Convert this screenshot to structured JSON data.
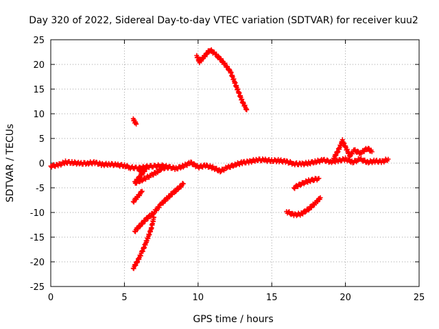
{
  "chart_data": {
    "type": "scatter",
    "title": "Day 320 of 2022, Sidereal Day-to-day VTEC variation (SDTVAR) for receiver kuu2",
    "xlabel": "GPS time / hours",
    "ylabel": "SDTVAR / TECUs",
    "xlim": [
      0,
      25
    ],
    "ylim": [
      -25,
      25
    ],
    "xticks": [
      0,
      5,
      10,
      15,
      20,
      25
    ],
    "yticks": [
      -25,
      -20,
      -15,
      -10,
      -5,
      0,
      5,
      10,
      15,
      20,
      25
    ],
    "grid": true,
    "legend": "none",
    "marker": "plus",
    "color": "#ff0000",
    "series": [
      {
        "name": "near-zero band",
        "points": [
          [
            0,
            -0.6
          ],
          [
            0.5,
            -0.4
          ],
          [
            1,
            0.2
          ],
          [
            1.5,
            0.1
          ],
          [
            2,
            -0.1
          ],
          [
            2.5,
            0.0
          ],
          [
            3,
            0.1
          ],
          [
            3.5,
            -0.3
          ],
          [
            4,
            -0.2
          ],
          [
            4.5,
            -0.4
          ],
          [
            5,
            -0.5
          ],
          [
            5.4,
            -0.9
          ],
          [
            6,
            -1.0
          ],
          [
            6.6,
            -0.7
          ],
          [
            7.5,
            -0.5
          ],
          [
            8.5,
            -1.1
          ],
          [
            9,
            -0.6
          ],
          [
            9.5,
            0.1
          ],
          [
            10,
            -0.8
          ],
          [
            10.5,
            -0.5
          ],
          [
            11,
            -0.9
          ],
          [
            11.5,
            -1.6
          ],
          [
            12,
            -0.9
          ],
          [
            12.5,
            -0.3
          ],
          [
            13,
            0.1
          ],
          [
            13.5,
            0.3
          ],
          [
            14,
            0.7
          ],
          [
            14.5,
            0.6
          ],
          [
            15,
            0.5
          ],
          [
            15.5,
            0.5
          ],
          [
            16,
            0.3
          ],
          [
            16.5,
            -0.1
          ],
          [
            17,
            -0.2
          ],
          [
            17.5,
            0.0
          ],
          [
            18,
            0.3
          ],
          [
            18.5,
            0.6
          ],
          [
            19,
            0.3
          ],
          [
            19.5,
            0.5
          ],
          [
            20,
            0.8
          ],
          [
            20.5,
            0.2
          ],
          [
            21,
            0.8
          ],
          [
            21.5,
            0.2
          ],
          [
            22,
            0.4
          ],
          [
            22.5,
            0.3
          ],
          [
            22.9,
            0.8
          ]
        ]
      },
      {
        "name": "high arc",
        "points": [
          [
            9.9,
            21.8
          ],
          [
            10.1,
            20.5
          ],
          [
            10.4,
            21.5
          ],
          [
            10.8,
            23.0
          ],
          [
            11.2,
            22.0
          ],
          [
            11.7,
            20.5
          ],
          [
            12.2,
            18.5
          ],
          [
            12.6,
            15.5
          ],
          [
            13.0,
            12.5
          ],
          [
            13.3,
            10.8
          ]
        ]
      },
      {
        "name": "isolated cluster",
        "points": [
          [
            5.6,
            9.0
          ],
          [
            5.7,
            8.3
          ],
          [
            5.8,
            7.9
          ]
        ]
      },
      {
        "name": "rise after 20 h",
        "points": [
          [
            19.2,
            1.0
          ],
          [
            19.5,
            2.5
          ],
          [
            19.8,
            4.5
          ],
          [
            20.3,
            1.5
          ],
          [
            20.6,
            2.6
          ],
          [
            21,
            2.0
          ],
          [
            21.5,
            3.0
          ],
          [
            21.8,
            2.3
          ]
        ]
      },
      {
        "name": "shallow rise",
        "points": [
          [
            6.0,
            -1.5
          ],
          [
            6.5,
            -1.0
          ],
          [
            5.7,
            -4.0
          ],
          [
            6.2,
            -3.4
          ],
          [
            6.8,
            -2.5
          ],
          [
            7.2,
            -1.8
          ],
          [
            7.5,
            -1.1
          ],
          [
            8,
            -0.8
          ]
        ]
      },
      {
        "name": "steep rise",
        "points": [
          [
            5.7,
            -13.8
          ],
          [
            6.1,
            -12.5
          ],
          [
            6.5,
            -11.3
          ],
          [
            7,
            -10.0
          ],
          [
            7.5,
            -8.3
          ],
          [
            8,
            -6.8
          ],
          [
            8.5,
            -5.5
          ],
          [
            9,
            -4.2
          ]
        ]
      },
      {
        "name": "short segment",
        "points": [
          [
            5.6,
            -7.8
          ],
          [
            5.9,
            -6.8
          ],
          [
            6.2,
            -5.7
          ]
        ]
      },
      {
        "name": "deepest segment",
        "points": [
          [
            5.6,
            -21.3
          ],
          [
            5.9,
            -19.8
          ],
          [
            6.2,
            -18.0
          ],
          [
            6.5,
            -15.8
          ],
          [
            6.8,
            -13.5
          ],
          [
            7.0,
            -11.0
          ]
        ]
      },
      {
        "name": "dip near 16 h",
        "points": [
          [
            16.0,
            -9.8
          ],
          [
            16.5,
            -10.5
          ],
          [
            17,
            -10.3
          ],
          [
            17.5,
            -9.3
          ],
          [
            18.0,
            -8.0
          ],
          [
            18.3,
            -7.0
          ]
        ]
      },
      {
        "name": "segment near -4",
        "points": [
          [
            16.5,
            -5.0
          ],
          [
            17,
            -4.2
          ],
          [
            17.5,
            -3.6
          ],
          [
            18.2,
            -3.1
          ]
        ]
      }
    ]
  }
}
